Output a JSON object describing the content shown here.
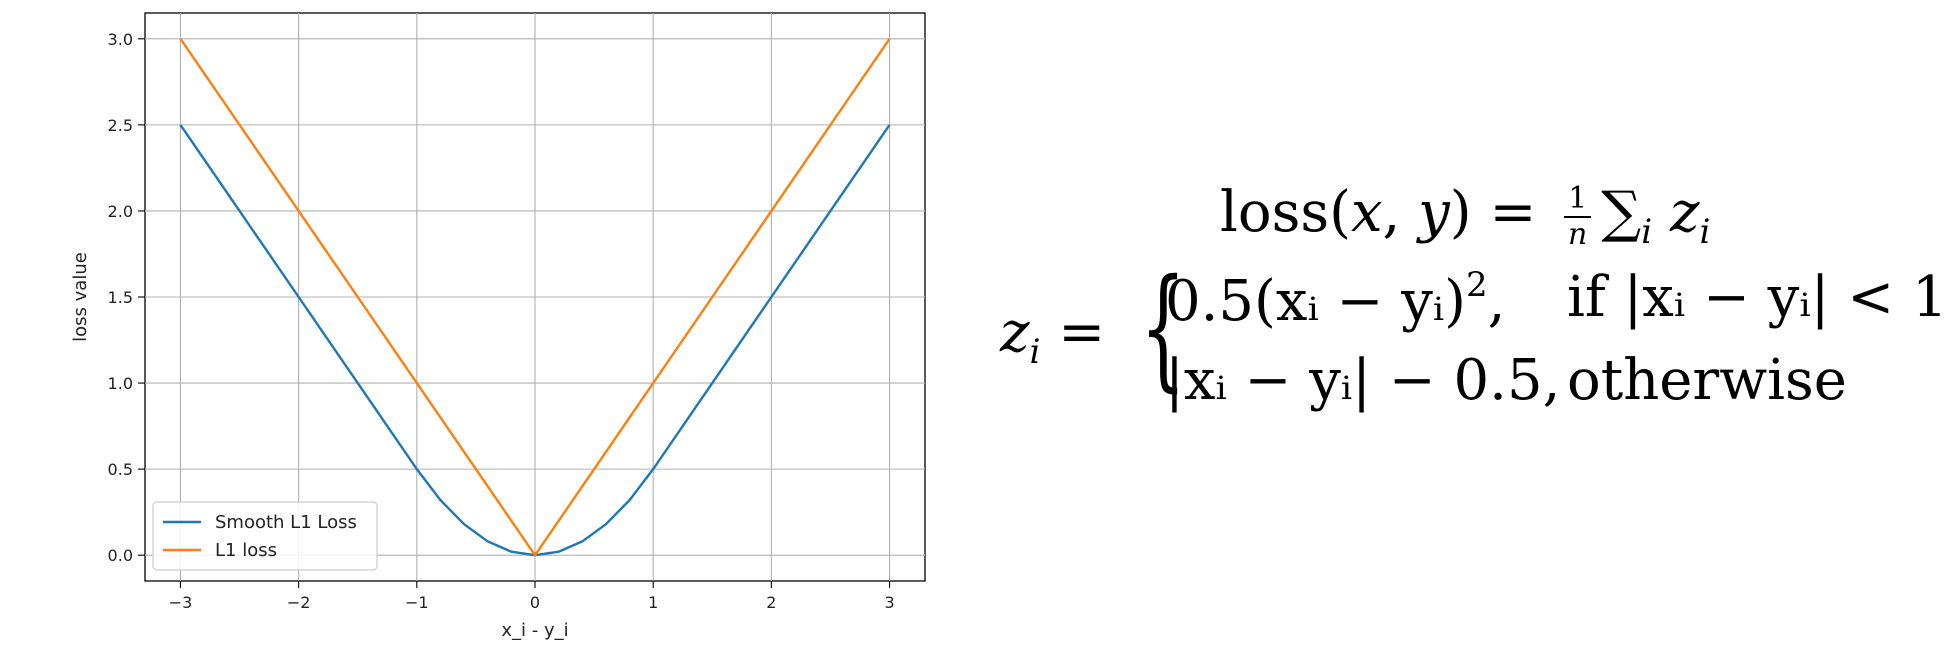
{
  "chart_data": {
    "type": "line",
    "title": "",
    "xlabel": "x_i - y_i",
    "ylabel": "loss value",
    "xlim": [
      -3.3,
      3.3
    ],
    "ylim": [
      -0.15,
      3.15
    ],
    "xticks": [
      -3,
      -2,
      -1,
      0,
      1,
      2,
      3
    ],
    "xtick_labels": [
      "−3",
      "−2",
      "−1",
      "0",
      "1",
      "2",
      "3"
    ],
    "yticks": [
      0.0,
      0.5,
      1.0,
      1.5,
      2.0,
      2.5,
      3.0
    ],
    "ytick_labels": [
      "0.0",
      "0.5",
      "1.0",
      "1.5",
      "2.0",
      "2.5",
      "3.0"
    ],
    "grid": true,
    "legend_position": "lower-left",
    "x": [
      -3,
      -2.5,
      -2,
      -1.5,
      -1,
      -0.8,
      -0.6,
      -0.4,
      -0.2,
      0,
      0.2,
      0.4,
      0.6,
      0.8,
      1,
      1.5,
      2,
      2.5,
      3
    ],
    "series": [
      {
        "name": "Smooth L1 Loss",
        "color": "#1f77b4",
        "values": [
          2.5,
          2.0,
          1.5,
          1.0,
          0.5,
          0.32,
          0.18,
          0.08,
          0.02,
          0.0,
          0.02,
          0.08,
          0.18,
          0.32,
          0.5,
          1.0,
          1.5,
          2.0,
          2.5
        ]
      },
      {
        "name": "L1 loss",
        "color": "#ff7f0e",
        "values": [
          3.0,
          2.5,
          2.0,
          1.5,
          1.0,
          0.8,
          0.6,
          0.4,
          0.2,
          0.0,
          0.2,
          0.4,
          0.6,
          0.8,
          1.0,
          1.5,
          2.0,
          2.5,
          3.0
        ]
      }
    ]
  },
  "formula": {
    "loss_lhs": "loss(",
    "loss_x": "x",
    "loss_comma": ", ",
    "loss_y": "y",
    "loss_close": ") = ",
    "frac_num": "1",
    "frac_den": "n",
    "sum_symbol": "∑",
    "sum_sub": "i",
    "term": "z",
    "term_sub": "i",
    "z_lhs": "z",
    "z_lhs_sub": "i",
    "equals": " = ",
    "brace": "{",
    "case1_expr": "0.5(xᵢ − yᵢ)",
    "case1_sup": "2",
    "case1_comma": ",",
    "case1_cond": "if |xᵢ − yᵢ| < 1",
    "case2_expr": "|xᵢ − yᵢ| − 0.5,",
    "case2_cond": "otherwise"
  }
}
